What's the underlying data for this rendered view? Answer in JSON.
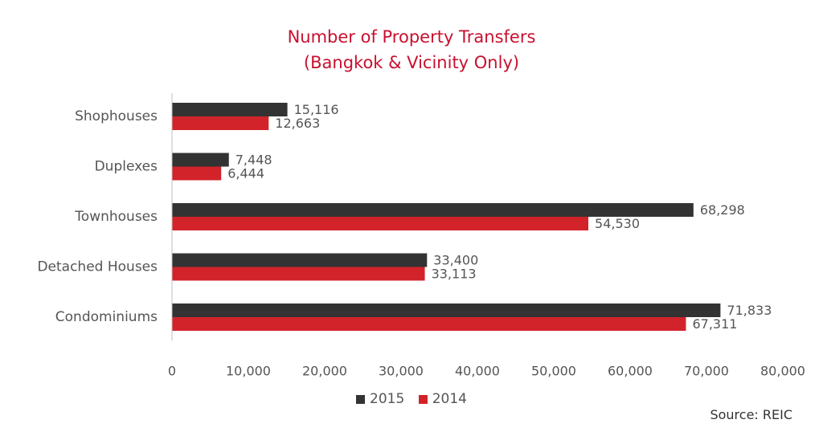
{
  "chart_data": {
    "type": "bar",
    "orientation": "horizontal",
    "title": "Number of Property Transfers",
    "subtitle": "(Bangkok & Vicinity Only)",
    "categories": [
      "Shophouses",
      "Duplexes",
      "Townhouses",
      "Detached Houses",
      "Condominiums"
    ],
    "series": [
      {
        "name": "2015",
        "color": "#333333",
        "values": [
          15116,
          7448,
          68298,
          33400,
          71833
        ],
        "labels": [
          "15,116",
          "7,448",
          "68,298",
          "33,400",
          "71,833"
        ]
      },
      {
        "name": "2014",
        "color": "#d2232a",
        "values": [
          12663,
          6444,
          54530,
          33113,
          67311
        ],
        "labels": [
          "12,663",
          "6,444",
          "54,530",
          "33,113",
          "67,311"
        ]
      }
    ],
    "xlim": [
      0,
      80000
    ],
    "xticks": [
      0,
      10000,
      20000,
      30000,
      40000,
      50000,
      60000,
      70000,
      80000
    ],
    "xtick_labels": [
      "0",
      "10,000",
      "20,000",
      "30,000",
      "40,000",
      "50,000",
      "60,000",
      "70,000",
      "80,000"
    ],
    "xlabel": "",
    "ylabel": "",
    "grid": false,
    "legend_position": "bottom"
  },
  "source": "Source: REIC"
}
